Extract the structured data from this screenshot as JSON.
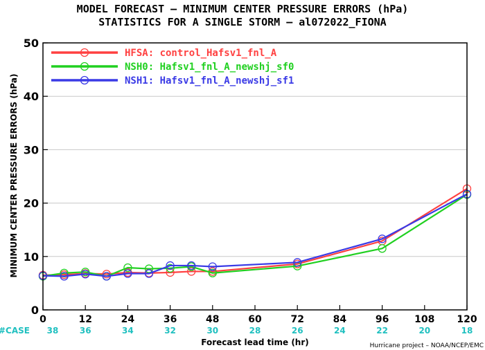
{
  "chart_data": {
    "type": "line",
    "title_line1": "MODEL FORECAST – MINIMUM CENTER PRESSURE ERRORS (hPa)",
    "title_line2": "STATISTICS FOR A SINGLE STORM – al072022_FIONA",
    "xlabel": "Forecast lead time (hr)",
    "ylabel": "MINIMUM CENTER PRESSURE ERRORS (hPa)",
    "xlim": [
      0,
      120
    ],
    "ylim": [
      0,
      50
    ],
    "x_ticks": [
      0,
      12,
      24,
      36,
      48,
      60,
      72,
      84,
      96,
      108,
      120
    ],
    "y_ticks": [
      0,
      10,
      20,
      30,
      40,
      50
    ],
    "case_label": "#CASE",
    "case_counts": [
      38,
      36,
      34,
      32,
      30,
      28,
      26,
      24,
      22,
      20,
      18
    ],
    "credit": "Hurricane project – NOAA/NCEP/EMC",
    "legend_position": "top-left",
    "series": [
      {
        "name": "HFSA: control_Hafsv1_fnl_A",
        "color": "#ff4040",
        "x": [
          0,
          6,
          12,
          18,
          24,
          30,
          36,
          42,
          48,
          72,
          96,
          120
        ],
        "y": [
          6.5,
          6.6,
          6.8,
          6.7,
          7.0,
          6.9,
          7.0,
          7.2,
          7.2,
          8.6,
          12.9,
          22.7
        ]
      },
      {
        "name": "NSH0: Hafsv1_fnl_A_newshj_sf0",
        "color": "#20d020",
        "x": [
          0,
          6,
          12,
          18,
          24,
          30,
          36,
          42,
          48,
          72,
          96,
          120
        ],
        "y": [
          6.3,
          6.9,
          7.1,
          6.3,
          7.9,
          7.7,
          7.8,
          8.1,
          6.9,
          8.2,
          11.5,
          21.6
        ]
      },
      {
        "name": "NSH1: Hafsv1_fnl_A_newshj_sf1",
        "color": "#3a3ae6",
        "x": [
          0,
          6,
          12,
          18,
          24,
          30,
          36,
          42,
          48,
          72,
          96,
          120
        ],
        "y": [
          6.4,
          6.3,
          6.7,
          6.3,
          6.8,
          6.8,
          8.3,
          8.3,
          8.1,
          8.9,
          13.3,
          21.7
        ]
      }
    ]
  }
}
